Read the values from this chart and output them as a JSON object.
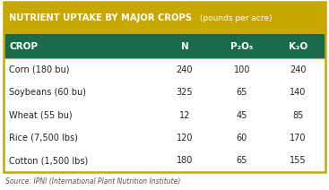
{
  "title_bold": "NUTRIENT UPTAKE BY MAJOR CROPS",
  "title_light": " (pounds per acre)",
  "header_bg": "#C8A800",
  "table_header_bg": "#1A6B4A",
  "table_header_text": "#FFFFFF",
  "border_color": "#C8A800",
  "row_bg": "#FFFFFF",
  "source_text": "Source: IPNI (International Plant Nutrition Institute)",
  "columns": [
    "CROP",
    "N",
    "P₂O₅",
    "K₂O"
  ],
  "rows": [
    [
      "Corn (180 bu)",
      "240",
      "100",
      "240"
    ],
    [
      "Soybeans (60 bu)",
      "325",
      "65",
      "140"
    ],
    [
      "Wheat (55 bu)",
      "12",
      "45",
      "85"
    ],
    [
      "Rice (7,500 lbs)",
      "120",
      "60",
      "170"
    ],
    [
      "Cotton (1,500 lbs)",
      "180",
      "65",
      "155"
    ]
  ],
  "figsize": [
    3.67,
    2.12
  ],
  "dpi": 100,
  "title_fontsize": 7.2,
  "subtitle_fontsize": 6.5,
  "header_fontsize": 7.5,
  "data_fontsize": 7.0,
  "source_fontsize": 5.5
}
